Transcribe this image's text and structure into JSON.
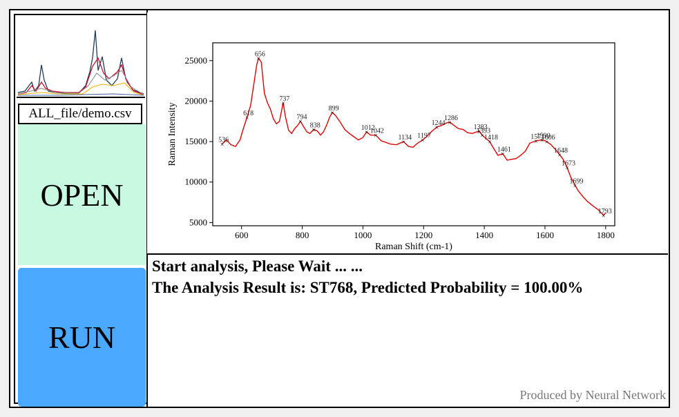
{
  "file_label": "ALL_file/demo.csv",
  "buttons": {
    "open": "OPEN",
    "run": "RUN"
  },
  "result": {
    "line1": "Start analysis, Please Wait ... ...",
    "line2": "The Analysis Result is: ST768, Predicted Probability = 100.00%"
  },
  "footer": "Produced by Neural Network",
  "colors": {
    "open_bg": "#c8fae2",
    "run_bg": "#4aa8ff",
    "spectrum": "#e00000",
    "footer": "#777777"
  },
  "logo_icon": "raman-spectra-thumbnail-icon",
  "chart_data": {
    "type": "line",
    "xlabel": "Raman Shift (cm-1)",
    "ylabel": "Raman Intensity",
    "xlim": [
      505,
      1830
    ],
    "ylim": [
      4600,
      27200
    ],
    "xticks": [
      600,
      800,
      1000,
      1200,
      1400,
      1600,
      1800
    ],
    "yticks": [
      5000,
      10000,
      15000,
      20000,
      25000
    ],
    "grid": false,
    "series": [
      {
        "color": "#e00000",
        "x": [
          536,
          550,
          565,
          580,
          595,
          605,
          618,
          630,
          640,
          650,
          656,
          665,
          675,
          685,
          695,
          705,
          715,
          725,
          737,
          745,
          755,
          765,
          775,
          785,
          794,
          805,
          815,
          825,
          838,
          850,
          860,
          870,
          880,
          890,
          899,
          910,
          925,
          940,
          955,
          970,
          985,
          1000,
          1012,
          1025,
          1042,
          1060,
          1075,
          1090,
          1110,
          1134,
          1150,
          1165,
          1180,
          1197,
          1210,
          1225,
          1244,
          1260,
          1275,
          1286,
          1300,
          1315,
          1330,
          1345,
          1360,
          1383,
          1393,
          1405,
          1418,
          1430,
          1445,
          1461,
          1475,
          1490,
          1505,
          1520,
          1535,
          1550,
          1571,
          1590,
          1600,
          1606,
          1620,
          1635,
          1648,
          1660,
          1673,
          1685,
          1699,
          1710,
          1725,
          1740,
          1760,
          1775,
          1793,
          1800
        ],
        "y": [
          14700,
          15200,
          14600,
          14400,
          15200,
          16500,
          18000,
          19500,
          22000,
          24500,
          25300,
          24800,
          21000,
          19800,
          19000,
          17800,
          17200,
          17500,
          19800,
          18000,
          16400,
          16000,
          16600,
          17000,
          17500,
          16800,
          16200,
          16000,
          16500,
          16300,
          15800,
          16200,
          17000,
          18000,
          18600,
          18200,
          17400,
          16500,
          16000,
          15600,
          15200,
          15500,
          16200,
          15800,
          15800,
          15100,
          14900,
          14700,
          14600,
          15000,
          14400,
          14300,
          14800,
          15200,
          15600,
          16200,
          16800,
          17000,
          17300,
          17400,
          17000,
          16600,
          16500,
          16100,
          16000,
          16300,
          15800,
          15400,
          15000,
          14200,
          13300,
          13500,
          12700,
          12800,
          12900,
          13300,
          13800,
          14800,
          15100,
          15200,
          15100,
          15000,
          14600,
          14000,
          13400,
          12800,
          11800,
          10600,
          9600,
          8900,
          8200,
          7600,
          7000,
          6600,
          5900,
          6200
        ]
      }
    ],
    "peaks": [
      {
        "label": "536",
        "x": 536,
        "y": 14700
      },
      {
        "label": "618",
        "x": 618,
        "y": 18000
      },
      {
        "label": "656",
        "x": 656,
        "y": 25300
      },
      {
        "label": "737",
        "x": 737,
        "y": 19800
      },
      {
        "label": "794",
        "x": 794,
        "y": 17500
      },
      {
        "label": "838",
        "x": 838,
        "y": 16500
      },
      {
        "label": "899",
        "x": 899,
        "y": 18600
      },
      {
        "label": "1012",
        "x": 1012,
        "y": 16200
      },
      {
        "label": "1042",
        "x": 1042,
        "y": 15800
      },
      {
        "label": "1134",
        "x": 1134,
        "y": 15000
      },
      {
        "label": "1197",
        "x": 1197,
        "y": 15200
      },
      {
        "label": "1244",
        "x": 1244,
        "y": 16800
      },
      {
        "label": "1286",
        "x": 1286,
        "y": 17400
      },
      {
        "label": "1383",
        "x": 1383,
        "y": 16300
      },
      {
        "label": "1393",
        "x": 1393,
        "y": 15800
      },
      {
        "label": "1418",
        "x": 1418,
        "y": 15000
      },
      {
        "label": "1461",
        "x": 1461,
        "y": 13500
      },
      {
        "label": "1571",
        "x": 1571,
        "y": 15100
      },
      {
        "label": "1590",
        "x": 1590,
        "y": 15200
      },
      {
        "label": "1606",
        "x": 1606,
        "y": 15000
      },
      {
        "label": "1648",
        "x": 1648,
        "y": 13400
      },
      {
        "label": "1673",
        "x": 1673,
        "y": 11800
      },
      {
        "label": "1699",
        "x": 1699,
        "y": 9600
      },
      {
        "label": "1793",
        "x": 1793,
        "y": 5900
      }
    ]
  }
}
